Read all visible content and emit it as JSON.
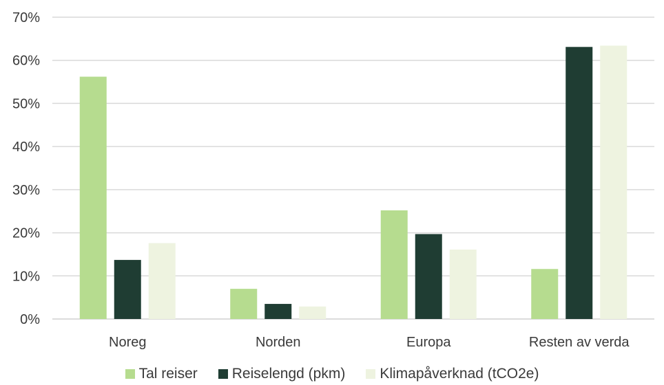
{
  "chart_data": {
    "type": "bar",
    "title": "",
    "xlabel": "",
    "ylabel": "",
    "categories": [
      "Noreg",
      "Norden",
      "Europa",
      "Resten av verda"
    ],
    "series": [
      {
        "name": "Tal reiser",
        "color": "#b6dc8f",
        "values": [
          56.2,
          7.0,
          25.2,
          11.6
        ]
      },
      {
        "name": "Reiselengd (pkm)",
        "color": "#1f3d33",
        "values": [
          13.7,
          3.5,
          19.7,
          63.1
        ]
      },
      {
        "name": "Klimapåverknad (tCO2e)",
        "color": "#eef3e0",
        "values": [
          17.6,
          2.9,
          16.1,
          63.4
        ]
      }
    ],
    "ylim": [
      0,
      70
    ],
    "yticks": [
      0,
      10,
      20,
      30,
      40,
      50,
      60,
      70
    ],
    "ytick_labels": [
      "0%",
      "10%",
      "20%",
      "30%",
      "40%",
      "50%",
      "60%",
      "70%"
    ],
    "grid": true,
    "legend_position": "bottom"
  }
}
